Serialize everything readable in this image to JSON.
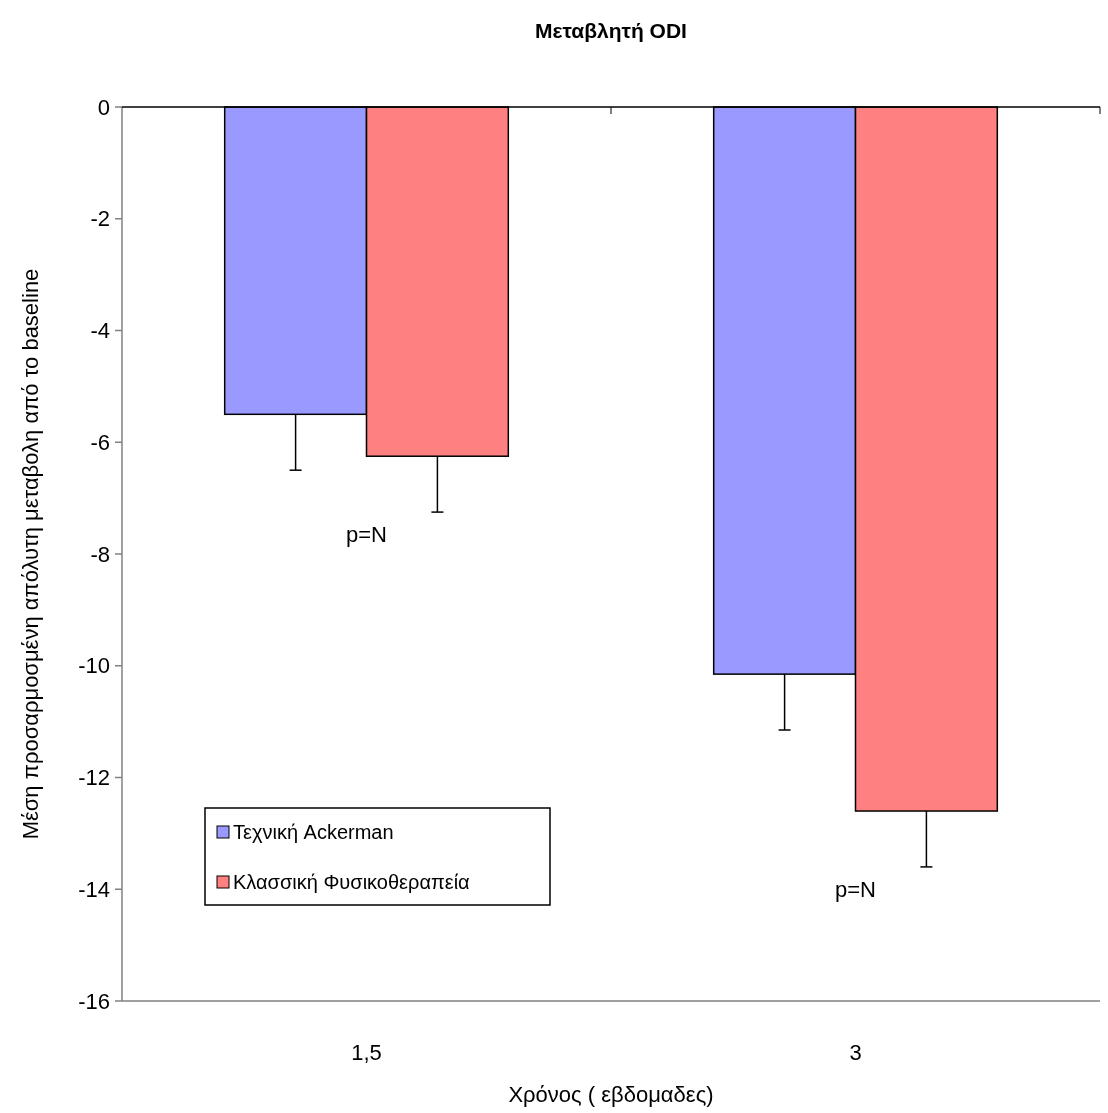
{
  "chart_data": {
    "type": "bar",
    "title": "Μεταβλητή ODI",
    "xlabel": "Χρόνος ( εβδομαδες)",
    "ylabel": "Μέση προσαρμοσμένη απόλυτη μεταβολη από το baseline",
    "categories": [
      "1,5",
      "3"
    ],
    "series": [
      {
        "name": "Τεχνική Ackerman",
        "color": "#9999ff",
        "values": [
          -5.5,
          -10.15
        ],
        "errors": [
          [
            -6.5,
            -5.5
          ],
          [
            -11.15,
            -10.15
          ]
        ]
      },
      {
        "name": "Κλασσική Φυσικοθεραπεία",
        "color": "#ff8080",
        "values": [
          -6.25,
          -12.6
        ],
        "errors": [
          [
            -7.25,
            -6.25
          ],
          [
            -13.6,
            -12.6
          ]
        ]
      }
    ],
    "ylim": [
      -16,
      0
    ],
    "yticks": [
      0,
      -2,
      -4,
      -6,
      -8,
      -10,
      -12,
      -14,
      -16
    ],
    "grid": false,
    "legend": "bottom left",
    "annotations": [
      "p=N",
      "p=N"
    ]
  }
}
